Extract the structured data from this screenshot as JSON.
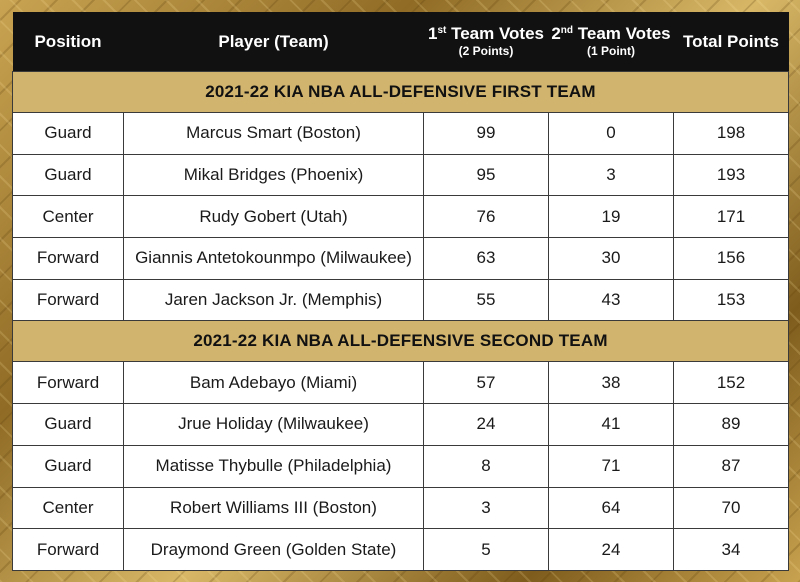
{
  "header": {
    "position": "Position",
    "player": "Player (Team)",
    "first_votes_pre": "1",
    "first_votes_sup": "st",
    "first_votes_post": " Team Votes",
    "first_votes_sub": "(2 Points)",
    "second_votes_pre": "2",
    "second_votes_sup": "nd",
    "second_votes_post": " Team Votes",
    "second_votes_sub": "(1 Point)",
    "total": "Total Points"
  },
  "first_team": {
    "title": "2021-22 KIA NBA ALL-DEFENSIVE FIRST TEAM",
    "rows": [
      {
        "position": "Guard",
        "player": "Marcus Smart (Boston)",
        "first": "99",
        "second": "0",
        "total": "198"
      },
      {
        "position": "Guard",
        "player": "Mikal Bridges (Phoenix)",
        "first": "95",
        "second": "3",
        "total": "193"
      },
      {
        "position": "Center",
        "player": "Rudy Gobert (Utah)",
        "first": "76",
        "second": "19",
        "total": "171"
      },
      {
        "position": "Forward",
        "player": "Giannis Antetokounmpo (Milwaukee)",
        "first": "63",
        "second": "30",
        "total": "156"
      },
      {
        "position": "Forward",
        "player": "Jaren Jackson Jr. (Memphis)",
        "first": "55",
        "second": "43",
        "total": "153"
      }
    ]
  },
  "second_team": {
    "title": "2021-22 KIA NBA ALL-DEFENSIVE SECOND TEAM",
    "rows": [
      {
        "position": "Forward",
        "player": "Bam Adebayo (Miami)",
        "first": "57",
        "second": "38",
        "total": "152"
      },
      {
        "position": "Guard",
        "player": "Jrue Holiday (Milwaukee)",
        "first": "24",
        "second": "41",
        "total": "89"
      },
      {
        "position": "Guard",
        "player": "Matisse Thybulle (Philadelphia)",
        "first": "8",
        "second": "71",
        "total": "87"
      },
      {
        "position": "Center",
        "player": "Robert Williams III (Boston)",
        "first": "3",
        "second": "64",
        "total": "70"
      },
      {
        "position": "Forward",
        "player": "Draymond Green (Golden State)",
        "first": "5",
        "second": "24",
        "total": "34"
      }
    ]
  }
}
